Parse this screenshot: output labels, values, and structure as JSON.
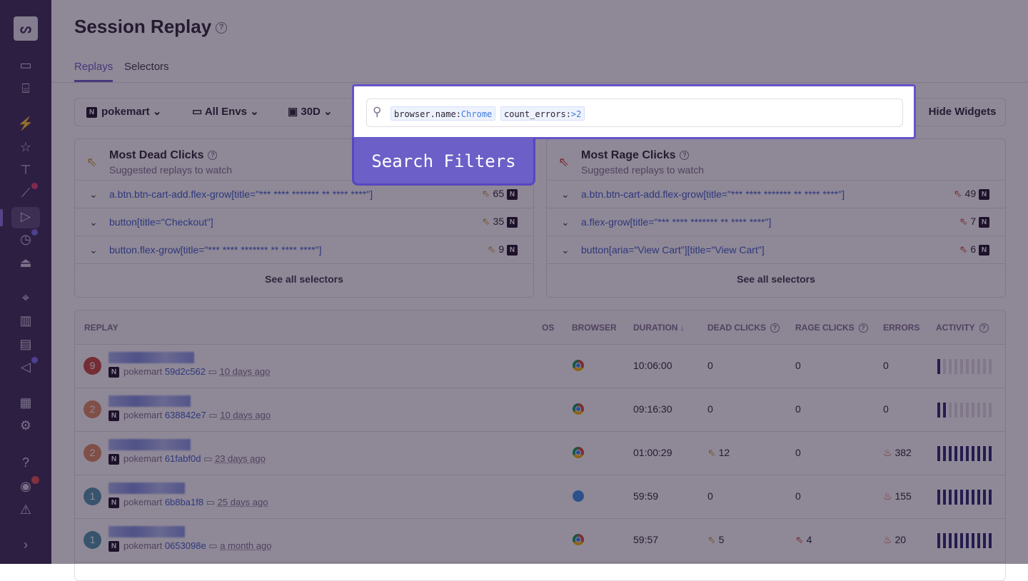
{
  "page": {
    "title": "Session Replay"
  },
  "tabs": [
    {
      "label": "Replays",
      "active": true
    },
    {
      "label": "Selectors",
      "active": false
    }
  ],
  "filters": {
    "project": "pokemart",
    "environment": "All Envs",
    "period": "30D",
    "hide_widgets": "Hide Widgets"
  },
  "search": {
    "icon": "search-icon",
    "tokens": [
      {
        "key": "browser.name:",
        "value": "Chrome"
      },
      {
        "key": "count_errors:",
        "value": ">2"
      }
    ]
  },
  "callout": "Search Filters",
  "dead_clicks": {
    "title": "Most Dead Clicks",
    "subtitle": "Suggested replays to watch",
    "see_all": "See all selectors",
    "items": [
      {
        "selector": "a.btn.btn-cart-add.flex-grow[title=\"*** **** ******* ** **** ****\"]",
        "count": "65"
      },
      {
        "selector": "button[title=\"Checkout\"]",
        "count": "35"
      },
      {
        "selector": "button.flex-grow[title=\"*** **** ******* ** **** ****\"]",
        "count": "9"
      }
    ]
  },
  "rage_clicks": {
    "title": "Most Rage Clicks",
    "subtitle": "Suggested replays to watch",
    "see_all": "See all selectors",
    "items": [
      {
        "selector": "a.btn.btn-cart-add.flex-grow[title=\"*** **** ******* ** **** ****\"]",
        "count": "49"
      },
      {
        "selector": "a.flex-grow[title=\"*** **** ******* ** **** ****\"]",
        "count": "7"
      },
      {
        "selector": "button[aria=\"View Cart\"][title=\"View Cart\"]",
        "count": "6"
      }
    ]
  },
  "table": {
    "headers": {
      "replay": "REPLAY",
      "os": "OS",
      "browser": "BROWSER",
      "duration": "DURATION ↓",
      "dead": "DEAD CLICKS",
      "rage": "RAGE CLICKS",
      "errors": "ERRORS",
      "activity": "ACTIVITY"
    },
    "rows": [
      {
        "badge": "9",
        "badge_color": "#c8473a",
        "project": "pokemart",
        "id": "59d2c562",
        "ago": "10 days ago",
        "browser": "chrome",
        "duration": "10:06:00",
        "dead": "0",
        "rage": "0",
        "errors": "0",
        "activity": 1
      },
      {
        "badge": "2",
        "badge_color": "#e08a5e",
        "project": "pokemart",
        "id": "638842e7",
        "ago": "10 days ago",
        "browser": "chrome",
        "duration": "09:16:30",
        "dead": "0",
        "rage": "0",
        "errors": "0",
        "activity": 2
      },
      {
        "badge": "2",
        "badge_color": "#e08a5e",
        "project": "pokemart",
        "id": "61fabf0d",
        "ago": "23 days ago",
        "browser": "chrome",
        "duration": "01:00:29",
        "dead": "12",
        "rage": "0",
        "errors": "382",
        "activity": 10
      },
      {
        "badge": "1",
        "badge_color": "#4f95a8",
        "project": "pokemart",
        "id": "6b8ba1f8",
        "ago": "25 days ago",
        "browser": "safari",
        "duration": "59:59",
        "dead": "0",
        "rage": "0",
        "errors": "155",
        "activity": 10
      },
      {
        "badge": "1",
        "badge_color": "#4f95a8",
        "project": "pokemart",
        "id": "0653098e",
        "ago": "a month ago",
        "browser": "chrome",
        "duration": "59:57",
        "dead": "5",
        "rage": "4",
        "errors": "20",
        "activity": 10
      }
    ]
  },
  "colors": {
    "accent": "#6c5fc7",
    "dead": "#c99a2e",
    "rage": "#d6453c",
    "link": "#3c59c8"
  }
}
